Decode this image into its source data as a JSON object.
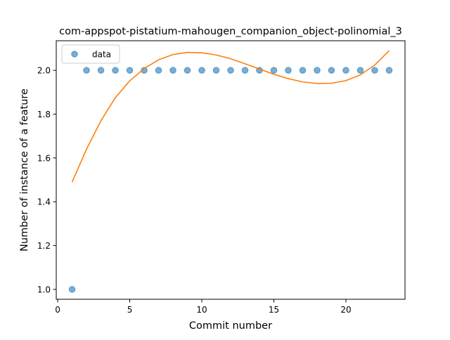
{
  "chart_data": {
    "type": "scatter",
    "title": "com-appspot-pistatium-mahougen_companion_object-polinomial_3",
    "xlabel": "Commit number",
    "ylabel": "Number of instance of a feature",
    "xlim": [
      -0.1,
      24.1
    ],
    "ylim": [
      0.955,
      2.135
    ],
    "xticks": [
      0,
      5,
      10,
      15,
      20
    ],
    "yticks": [
      1.0,
      1.2,
      1.4,
      1.6,
      1.8,
      2.0
    ],
    "xtick_labels": [
      "0",
      "5",
      "10",
      "15",
      "20"
    ],
    "ytick_labels": [
      "1.0",
      "1.2",
      "1.4",
      "1.6",
      "1.8",
      "2.0"
    ],
    "grid": false,
    "legend": {
      "position": "top-left",
      "entries": [
        "data"
      ]
    },
    "series": [
      {
        "name": "data",
        "kind": "scatter",
        "color": "#1f77b4",
        "x": [
          1,
          2,
          3,
          4,
          5,
          6,
          7,
          8,
          9,
          10,
          11,
          12,
          13,
          14,
          15,
          16,
          17,
          18,
          19,
          20,
          21,
          22,
          23
        ],
        "y": [
          1.0,
          2,
          2,
          2,
          2,
          2,
          2,
          2,
          2,
          2,
          2,
          2,
          2,
          2,
          2,
          2,
          2,
          2,
          2,
          2,
          2,
          2,
          2
        ]
      },
      {
        "kind": "line",
        "color": "#ff7f0e",
        "x": [
          1,
          2,
          3,
          4,
          5,
          6,
          7,
          8,
          9,
          10,
          11,
          12,
          13,
          14,
          15,
          16,
          17,
          18,
          19,
          20,
          21,
          22,
          23
        ],
        "y": [
          1.49,
          1.64,
          1.77,
          1.875,
          1.952,
          2.008,
          2.048,
          2.072,
          2.082,
          2.08,
          2.07,
          2.053,
          2.03,
          2.006,
          1.982,
          1.962,
          1.947,
          1.94,
          1.941,
          1.953,
          1.979,
          2.024,
          2.09
        ]
      }
    ]
  }
}
